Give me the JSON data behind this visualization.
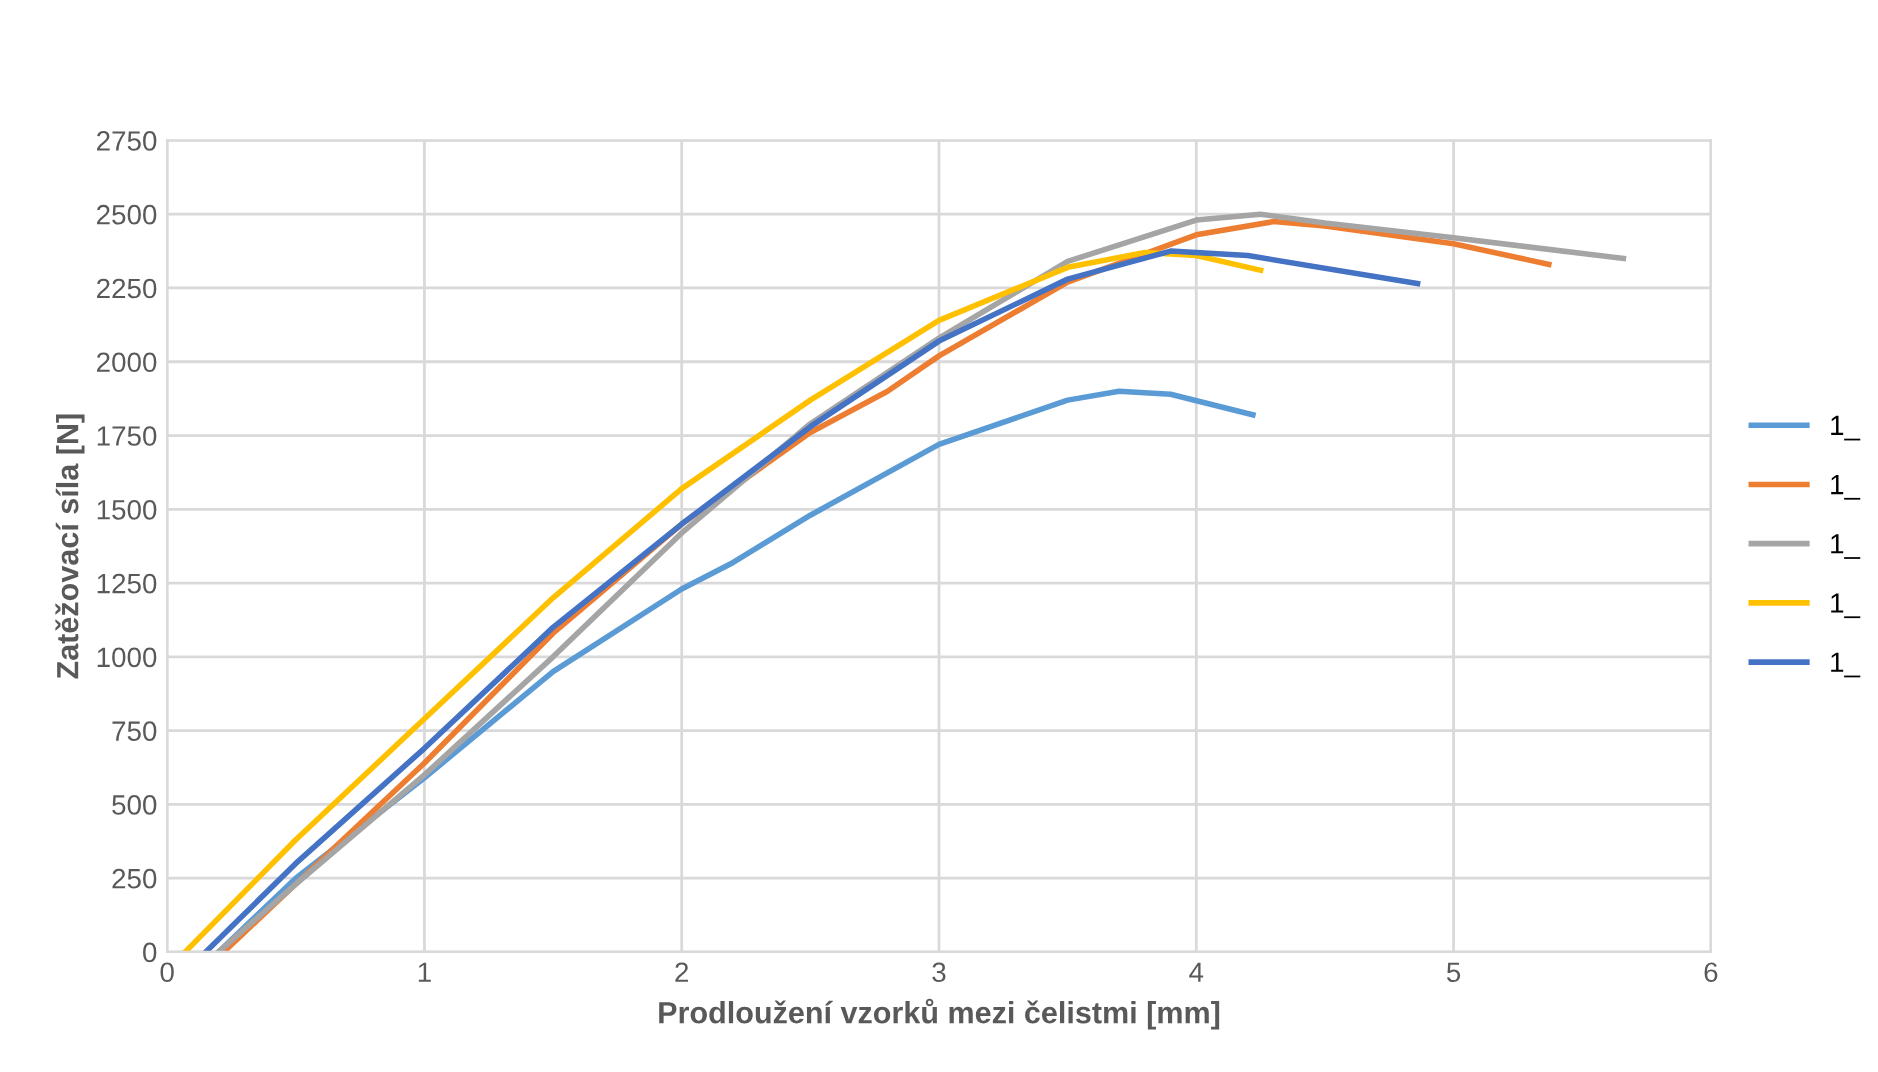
{
  "chart_data": {
    "type": "line",
    "xlabel": "Prodloužení vzorků mezi čelistmi [mm]",
    "ylabel": "Zatěžovací síla [N]",
    "xlim": [
      0,
      6
    ],
    "xticks": [
      0,
      1,
      2,
      3,
      4,
      5,
      6
    ],
    "ylim": [
      0,
      2750
    ],
    "yticks": [
      0,
      250,
      500,
      750,
      1000,
      1250,
      1500,
      1750,
      2000,
      2250,
      2500,
      2750
    ],
    "grid": true,
    "legend": "right",
    "marker": "none",
    "line_style": "solid",
    "series": [
      {
        "name": "1_",
        "color": "#5b9bd5",
        "x": [
          0.2,
          0.5,
          1,
          1.5,
          2,
          2.2,
          2.5,
          3,
          3.5,
          3.7,
          3.9,
          4.22
        ],
        "values": [
          0,
          250,
          590,
          950,
          1230,
          1320,
          1480,
          1720,
          1870,
          1900,
          1890,
          1820
        ]
      },
      {
        "name": "1_",
        "color": "#ed7d31",
        "x": [
          0.22,
          0.5,
          1,
          1.5,
          2,
          2.5,
          2.8,
          3,
          3.5,
          4,
          4.3,
          4.5,
          5,
          5.37
        ],
        "values": [
          0,
          230,
          640,
          1080,
          1450,
          1760,
          1900,
          2020,
          2270,
          2430,
          2475,
          2460,
          2400,
          2330
        ]
      },
      {
        "name": "1_",
        "color": "#a5a5a5",
        "x": [
          0.2,
          0.5,
          1,
          1.5,
          2,
          2.5,
          3,
          3.5,
          4,
          4.25,
          4.5,
          5,
          5.66
        ],
        "values": [
          0,
          230,
          600,
          1000,
          1420,
          1790,
          2080,
          2340,
          2480,
          2500,
          2470,
          2420,
          2350
        ]
      },
      {
        "name": "1_",
        "color": "#ffc000",
        "x": [
          0.07,
          0.5,
          1,
          1.5,
          2,
          2.5,
          3,
          3.5,
          3.8,
          4,
          4.25
        ],
        "values": [
          0,
          380,
          790,
          1200,
          1570,
          1870,
          2140,
          2320,
          2370,
          2360,
          2310
        ]
      },
      {
        "name": "1_",
        "color": "#4472c4",
        "x": [
          0.15,
          0.5,
          1,
          1.5,
          2,
          2.5,
          3,
          3.5,
          3.9,
          4.2,
          4.86
        ],
        "values": [
          0,
          300,
          690,
          1100,
          1450,
          1780,
          2070,
          2280,
          2375,
          2360,
          2265
        ]
      }
    ]
  }
}
